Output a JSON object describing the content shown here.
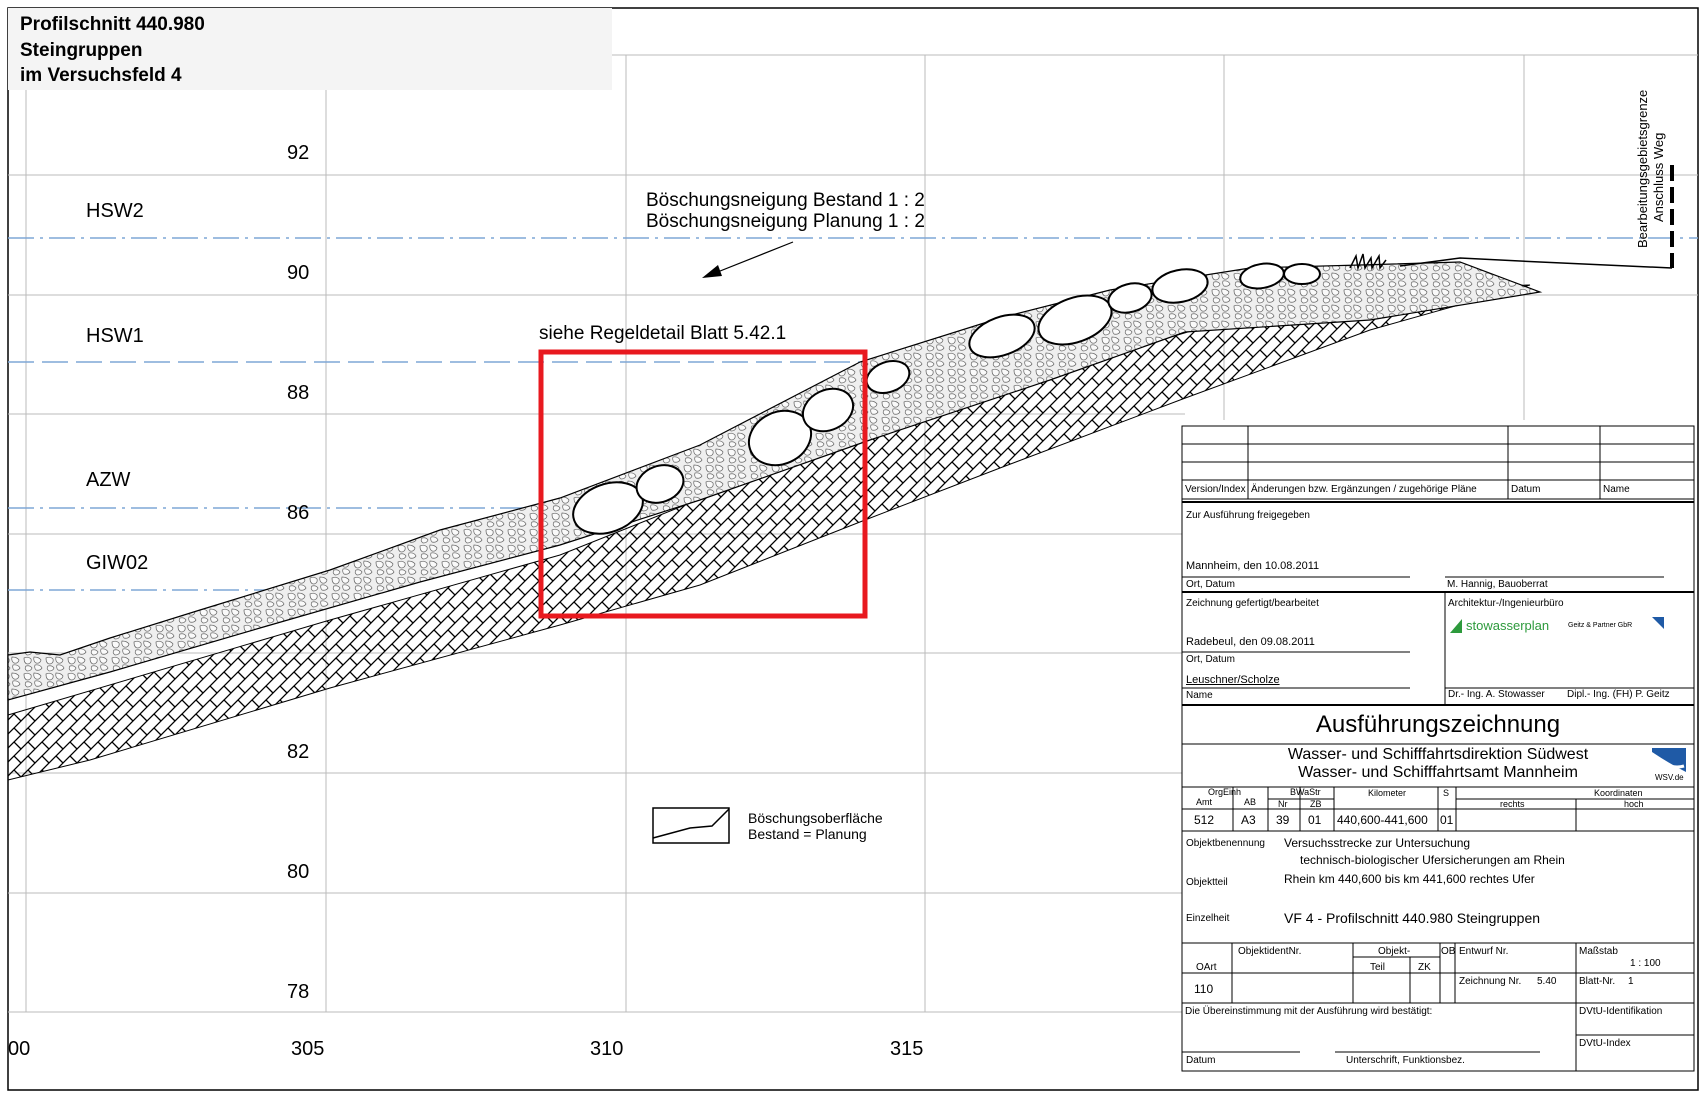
{
  "title": {
    "line1": "Profilschnitt 440.980",
    "line2": "Steingruppen",
    "line3": "im Versuchsfeld 4"
  },
  "elevations": [
    "92",
    "90",
    "88",
    "86",
    "82",
    "80",
    "78"
  ],
  "stations": [
    "00",
    "305",
    "310",
    "315"
  ],
  "water_levels": [
    "HSW2",
    "HSW1",
    "AZW",
    "GIW02"
  ],
  "annotations": {
    "slope_existing": "Böschungsneigung Bestand 1 : 2",
    "slope_planned": "Böschungsneigung Planung 1 : 2",
    "detail_ref": "siehe Regeldetail Blatt 5.42.1",
    "boundary_line1": "Bearbeitungsgebietsgrenze",
    "boundary_line2": "Anschluss Weg"
  },
  "legend": {
    "line1": "Böschungsoberfläche",
    "line2": "Bestand = Planung"
  },
  "colors": {
    "detail_frame": "#e8191f",
    "water_line": "#7fa7d6",
    "grid": "#bbbbbb",
    "stowasser_green": "#2d9a3c",
    "wsv_blue": "#1f5aa6"
  },
  "titleblock": {
    "rev_header": {
      "version": "Version/Index",
      "changes": "Änderungen bzw. Ergänzungen / zugehörige Pläne",
      "date": "Datum",
      "name": "Name"
    },
    "release": {
      "label": "Zur Ausführung freigegeben",
      "place_date": "Mannheim, den 10.08.2011",
      "place_date_label": "Ort, Datum",
      "signer": "M. Hannig, Bauoberrat"
    },
    "drawn": {
      "label": "Zeichnung gefertigt/bearbeitet",
      "place_date": "Radebeul, den 09.08.2011",
      "place_date_label": "Ort, Datum",
      "names": "Leuschner/Scholze",
      "names_label": "Name"
    },
    "office": {
      "label": "Architektur-/Ingenieurbüro",
      "company1": "stowasserplan",
      "company2": "Geitz & Partner GbR",
      "signer1": "Dr.- Ing. A. Stowasser",
      "signer2": "Dipl.- Ing. (FH) P. Geitz"
    },
    "drawing_type": "Ausführungszeichnung",
    "authority1": "Wasser- und Schifffahrtsdirektion Südwest",
    "authority2": "Wasser- und Schifffahrtsamt Mannheim",
    "wsv": "WSV.de",
    "codes": {
      "orgeinh": "OrgEinh",
      "amt": "Amt",
      "ab": "AB",
      "bwastr": "BWaStr",
      "nr": "Nr",
      "zb": "ZB",
      "kilometer": "Kilometer",
      "s": "S",
      "koordinaten": "Koordinaten",
      "rechts": "rechts",
      "hoch": "hoch",
      "amt_val": "512",
      "ab_val": "A3",
      "nr_val": "39",
      "zb_val": "01",
      "km_val": "440,600-441,600",
      "s_val": "01"
    },
    "object": {
      "label": "Objektbenennung",
      "line1": "Versuchsstrecke zur Untersuchung",
      "line2": "technisch-biologischer Ufersicherungen am Rhein",
      "part_label": "Objektteil",
      "part": "Rhein km 440,600 bis km 441,600 rechtes Ufer",
      "detail_label": "Einzelheit",
      "detail": "VF 4 - Profilschnitt 440.980  Steingruppen"
    },
    "ids": {
      "objektident": "ObjektidentNr.",
      "oart": "OArt",
      "oart_val": "110",
      "objekt": "Objekt-",
      "teil": "Teil",
      "zk": "ZK",
      "ob": "OB",
      "entwurf": "Entwurf Nr.",
      "zeichnung": "Zeichnung Nr.",
      "zeichnung_val": "5.40",
      "massstab": "Maßstab",
      "massstab_val": "1 : 100",
      "blatt": "Blatt-Nr.",
      "blatt_val": "1"
    },
    "footer": {
      "agree": "Die Übereinstimmung mit der Ausführung wird bestätigt:",
      "dvtu_id": "DVtU-Identifikation",
      "dvtu_index": "DVtU-Index",
      "datum": "Datum",
      "sign": "Unterschrift, Funktionsbez."
    }
  }
}
